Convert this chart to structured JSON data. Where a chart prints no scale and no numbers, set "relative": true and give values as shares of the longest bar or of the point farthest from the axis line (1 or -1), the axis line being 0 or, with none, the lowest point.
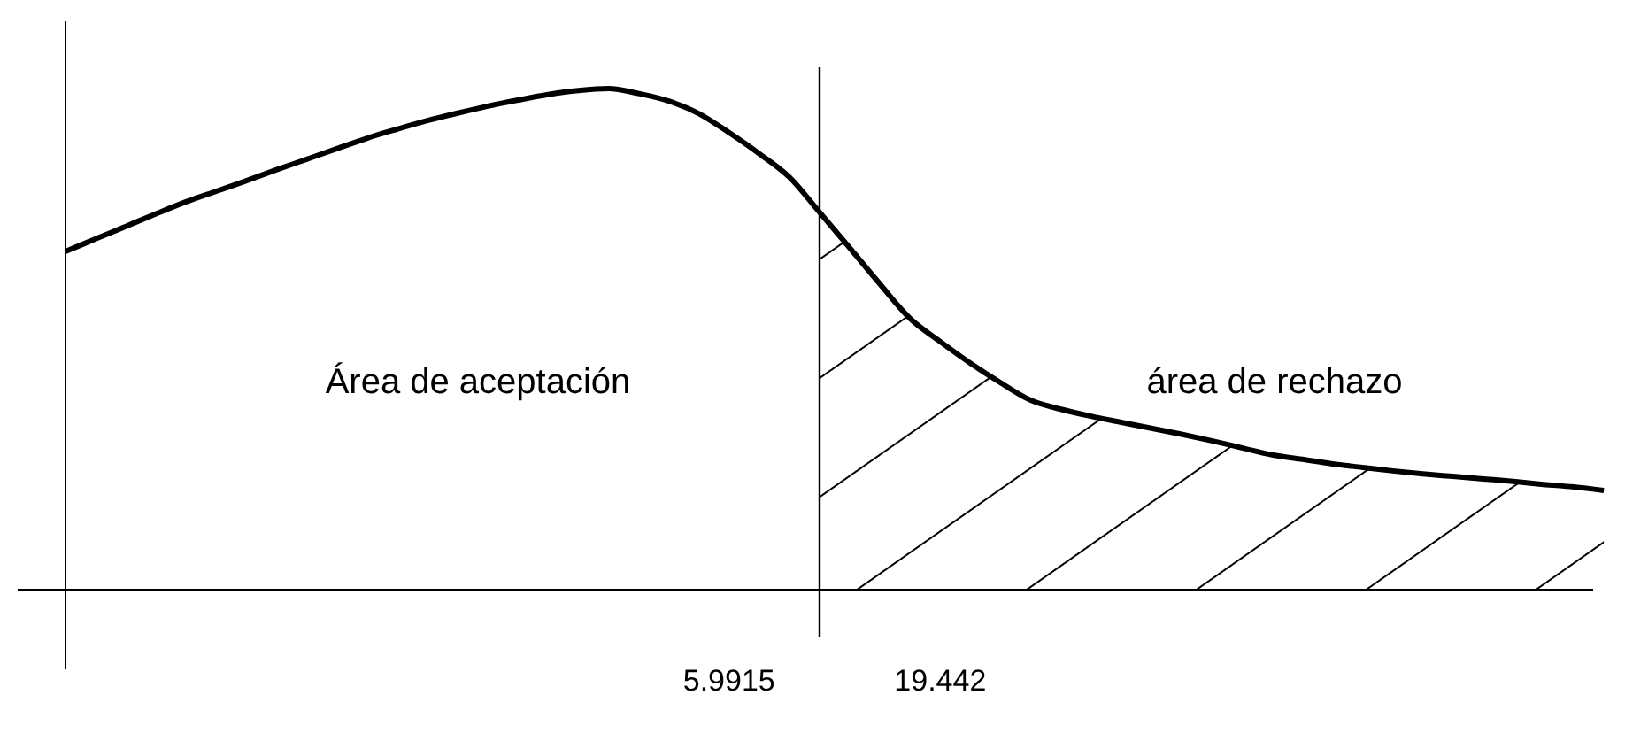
{
  "chart_data": {
    "type": "line",
    "relative": true,
    "categories": [
      null,
      null,
      null,
      null,
      null,
      null,
      null,
      null,
      null,
      null,
      null,
      null,
      null,
      null,
      null,
      null,
      null,
      null,
      null,
      null,
      null,
      null,
      "5.9915",
      null,
      null,
      null,
      null,
      null,
      null,
      "19.442",
      null,
      null,
      null,
      null,
      null,
      null,
      null,
      null,
      null,
      null,
      null,
      null,
      null,
      null,
      null,
      null,
      null,
      null,
      null,
      null,
      null,
      null
    ],
    "series": [
      {
        "type": "area",
        "color": "#000000",
        "values": [
          null,
          null,
          null,
          null,
          null,
          null,
          null,
          null,
          null,
          null,
          null,
          null,
          null,
          null,
          null,
          null,
          null,
          null,
          null,
          null,
          null,
          null,
          null,
          null,
          null,
          0.753,
          0.682,
          0.61,
          0.541,
          0.495,
          0.452,
          0.413,
          0.378,
          0.36,
          0.346,
          0.334,
          0.322,
          0.31,
          0.297,
          0.283,
          0.269,
          0.26,
          0.251,
          0.244,
          0.237,
          0.231,
          0.226,
          0.221,
          0.216,
          0.21,
          0.205,
          0.198
        ]
      },
      {
        "color": "#000000",
        "values": [
          0.675,
          0.7,
          0.725,
          0.75,
          0.774,
          0.795,
          0.816,
          0.838,
          0.859,
          0.88,
          0.901,
          0.919,
          0.936,
          0.951,
          0.965,
          0.977,
          0.988,
          0.996,
          1,
          0.99,
          0.975,
          0.95,
          0.912,
          0.87,
          0.823,
          0.753,
          0.682,
          0.61,
          0.541,
          0.495,
          0.452,
          0.413,
          0.378,
          0.36,
          0.346,
          0.334,
          0.322,
          0.31,
          0.297,
          0.283,
          0.269,
          0.26,
          0.251,
          0.244,
          0.237,
          0.231,
          0.226,
          0.221,
          0.216,
          0.21,
          0.205,
          0.198
        ]
      }
    ],
    "annotations": [
      "Área de aceptación",
      "área de rechazo"
    ],
    "line_style": "solid"
  }
}
